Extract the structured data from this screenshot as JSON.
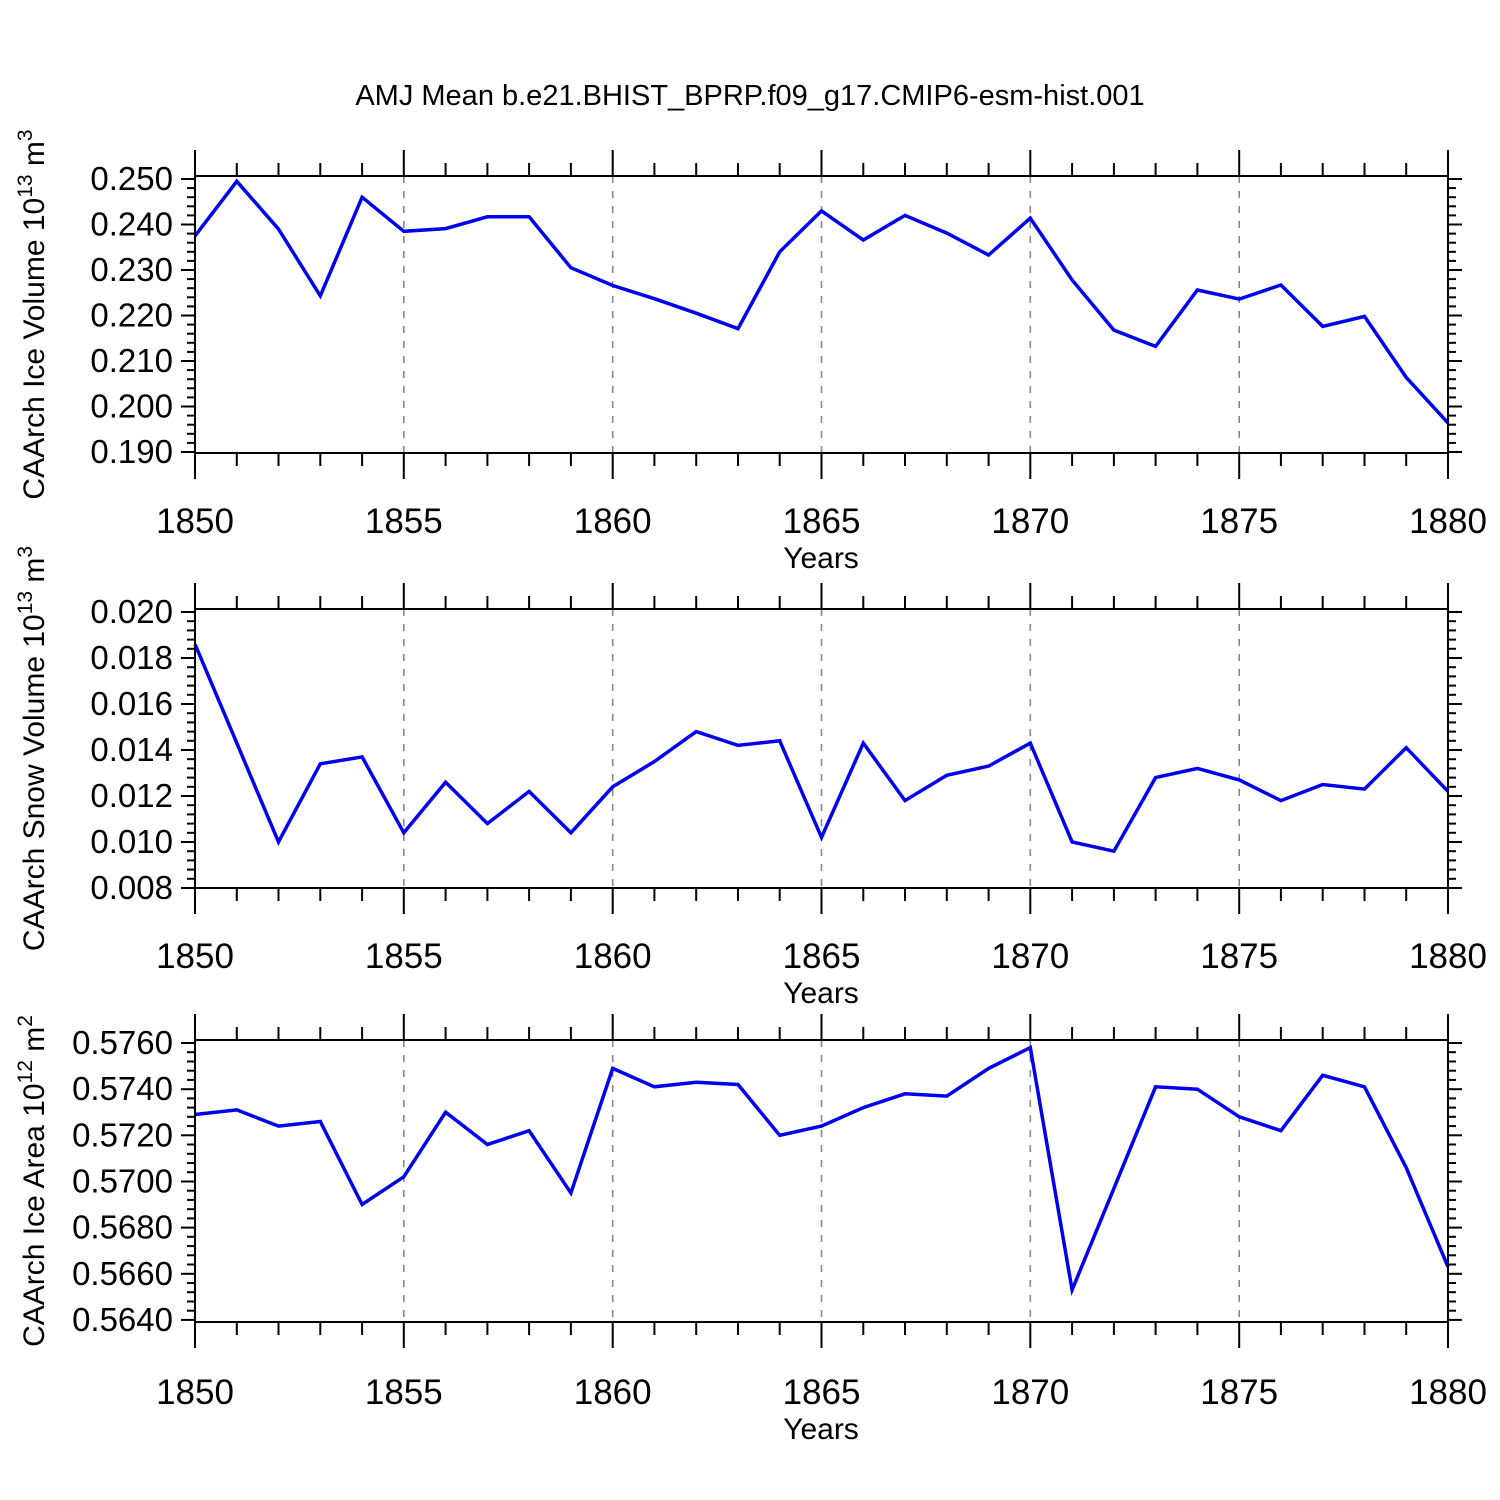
{
  "title": "AMJ Mean b.e21.BHIST_BPRP.f09_g17.CMIP6-esm-hist.001",
  "style": {
    "line_color": "#0000EE",
    "grid_color": "#888888",
    "axis_color": "#000000",
    "background": "#ffffff"
  },
  "chart_data": [
    {
      "type": "line",
      "id": "ice-volume",
      "ylabel": "CAArch Ice Volume 10^13 m^3",
      "ylabel_segments": [
        {
          "t": "CAArch Ice Volume 10"
        },
        {
          "t": "13",
          "sup": true
        },
        {
          "t": " m"
        },
        {
          "t": "3",
          "sup": true
        }
      ],
      "xlabel": "Years",
      "x": [
        1850,
        1851,
        1852,
        1853,
        1854,
        1855,
        1856,
        1857,
        1858,
        1859,
        1860,
        1861,
        1862,
        1863,
        1864,
        1865,
        1866,
        1867,
        1868,
        1869,
        1870,
        1871,
        1872,
        1873,
        1874,
        1875,
        1876,
        1877,
        1878,
        1879,
        1880
      ],
      "values": [
        0.2375,
        0.2495,
        0.239,
        0.2243,
        0.246,
        0.2385,
        0.2391,
        0.2417,
        0.2417,
        0.2305,
        0.2266,
        0.2237,
        0.2205,
        0.2171,
        0.234,
        0.243,
        0.2366,
        0.242,
        0.2381,
        0.2333,
        0.2414,
        0.2278,
        0.2168,
        0.2132,
        0.2256,
        0.2236,
        0.2267,
        0.2176,
        0.2198,
        0.2064,
        0.1964
      ],
      "xlim": [
        1850,
        1880
      ],
      "ylim": [
        0.18978,
        0.25066
      ],
      "yticks": {
        "values": [
          0.19,
          0.2,
          0.21,
          0.22,
          0.23,
          0.24,
          0.25
        ],
        "labels": [
          "0.190",
          "0.200",
          "0.210",
          "0.220",
          "0.230",
          "0.240",
          "0.250"
        ],
        "minor_step": 0.002
      },
      "xticks": {
        "values": [
          1850,
          1855,
          1860,
          1865,
          1870,
          1875,
          1880
        ],
        "labels": [
          "1850",
          "1855",
          "1860",
          "1865",
          "1870",
          "1875",
          "1880"
        ],
        "minor_step": 1
      },
      "gridlines_x": [
        1855,
        1860,
        1865,
        1870,
        1875
      ],
      "grid": "vertical-dashed",
      "legend": "none"
    },
    {
      "type": "line",
      "id": "snow-volume",
      "ylabel": "CAArch Snow Volume 10^13 m^3",
      "ylabel_segments": [
        {
          "t": "CAArch Snow Volume 10"
        },
        {
          "t": "13",
          "sup": true
        },
        {
          "t": " m"
        },
        {
          "t": "3",
          "sup": true
        }
      ],
      "xlabel": "Years",
      "x": [
        1850,
        1851,
        1852,
        1853,
        1854,
        1855,
        1856,
        1857,
        1858,
        1859,
        1860,
        1861,
        1862,
        1863,
        1864,
        1865,
        1866,
        1867,
        1868,
        1869,
        1870,
        1871,
        1872,
        1873,
        1874,
        1875,
        1876,
        1877,
        1878,
        1879,
        1880
      ],
      "values": [
        0.0186,
        0.0143,
        0.01,
        0.0134,
        0.0137,
        0.0104,
        0.0126,
        0.0108,
        0.0122,
        0.0104,
        0.0124,
        0.0135,
        0.0148,
        0.0142,
        0.0144,
        0.0102,
        0.0143,
        0.0118,
        0.0129,
        0.0133,
        0.0143,
        0.01,
        0.0096,
        0.0128,
        0.0132,
        0.0127,
        0.0118,
        0.0125,
        0.0123,
        0.0141,
        0.0122
      ],
      "xlim": [
        1850,
        1880
      ],
      "ylim": [
        0.008,
        0.02013
      ],
      "yticks": {
        "values": [
          0.008,
          0.01,
          0.012,
          0.014,
          0.016,
          0.018,
          0.02
        ],
        "labels": [
          "0.008",
          "0.010",
          "0.012",
          "0.014",
          "0.016",
          "0.018",
          "0.020"
        ],
        "minor_step": 0.0004
      },
      "xticks": {
        "values": [
          1850,
          1855,
          1860,
          1865,
          1870,
          1875,
          1880
        ],
        "labels": [
          "1850",
          "1855",
          "1860",
          "1865",
          "1870",
          "1875",
          "1880"
        ],
        "minor_step": 1
      },
      "gridlines_x": [
        1855,
        1860,
        1865,
        1870,
        1875
      ],
      "grid": "vertical-dashed",
      "legend": "none"
    },
    {
      "type": "line",
      "id": "ice-area",
      "ylabel": "CAArch Ice Area 10^12 m^2",
      "ylabel_segments": [
        {
          "t": "CAArch Ice Area 10"
        },
        {
          "t": "12",
          "sup": true
        },
        {
          "t": " m"
        },
        {
          "t": "2",
          "sup": true
        }
      ],
      "xlabel": "Years",
      "x": [
        1850,
        1851,
        1852,
        1853,
        1854,
        1855,
        1856,
        1857,
        1858,
        1859,
        1860,
        1861,
        1862,
        1863,
        1864,
        1865,
        1866,
        1867,
        1868,
        1869,
        1870,
        1871,
        1872,
        1873,
        1874,
        1875,
        1876,
        1877,
        1878,
        1879,
        1880
      ],
      "values": [
        0.5729,
        0.5731,
        0.5724,
        0.5726,
        0.569,
        0.5702,
        0.573,
        0.5716,
        0.5722,
        0.5695,
        0.5749,
        0.5741,
        0.5743,
        0.5742,
        0.572,
        0.5724,
        0.5732,
        0.5738,
        0.5737,
        0.5749,
        0.5758,
        0.5653,
        0.5697,
        0.5741,
        0.574,
        0.5728,
        0.5722,
        0.5746,
        0.5741,
        0.5706,
        0.5663
      ],
      "xlim": [
        1850,
        1880
      ],
      "ylim": [
        0.56391,
        0.57613
      ],
      "yticks": {
        "values": [
          0.564,
          0.566,
          0.568,
          0.57,
          0.572,
          0.574,
          0.576
        ],
        "labels": [
          "0.5640",
          "0.5660",
          "0.5680",
          "0.5700",
          "0.5720",
          "0.5740",
          "0.5760"
        ],
        "minor_step": 0.0004
      },
      "xticks": {
        "values": [
          1850,
          1855,
          1860,
          1865,
          1870,
          1875,
          1880
        ],
        "labels": [
          "1850",
          "1855",
          "1860",
          "1865",
          "1870",
          "1875",
          "1880"
        ],
        "minor_step": 1
      },
      "gridlines_x": [
        1855,
        1860,
        1865,
        1870,
        1875
      ],
      "grid": "vertical-dashed",
      "legend": "none"
    }
  ]
}
